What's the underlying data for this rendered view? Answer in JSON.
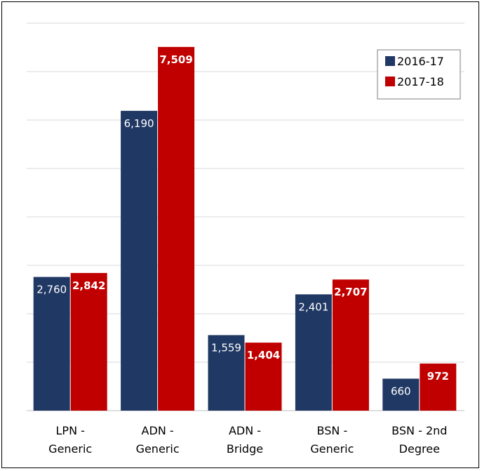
{
  "chart_data": {
    "type": "bar",
    "title": "",
    "xlabel": "",
    "ylabel": "",
    "categories": [
      [
        "LPN -",
        "Generic"
      ],
      [
        "ADN -",
        "Generic"
      ],
      [
        "ADN -",
        "Bridge"
      ],
      [
        "BSN -",
        "Generic"
      ],
      [
        "BSN - 2nd",
        "Degree"
      ]
    ],
    "series": [
      {
        "name": "2016-17",
        "color": "#203864",
        "values": [
          2760,
          6190,
          1559,
          2401,
          660
        ],
        "labels": [
          "2,760",
          "6,190",
          "1,559",
          "2,401",
          "660"
        ]
      },
      {
        "name": "2017-18",
        "color": "#C00000",
        "values": [
          2842,
          7509,
          1404,
          2707,
          972
        ],
        "labels": [
          "2,842",
          "7,509",
          "1,404",
          "2,707",
          "972"
        ]
      }
    ],
    "ylim": [
      0,
      8000
    ],
    "grid": true,
    "legend_position": "top-right",
    "gridline_color": "#d9d9d9"
  }
}
